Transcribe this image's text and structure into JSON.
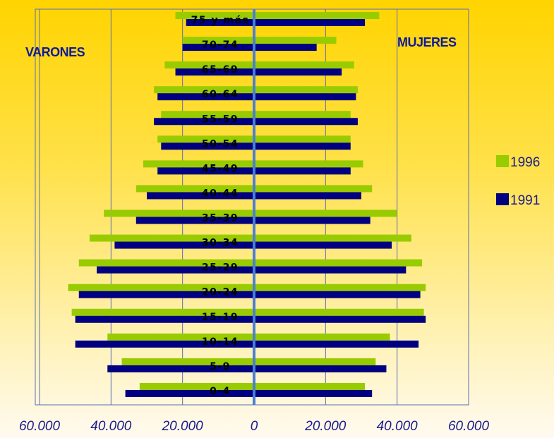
{
  "chart_data": {
    "type": "bar",
    "orientation": "horizontal",
    "layout": "population-pyramid",
    "categories": [
      "0-4",
      "5-9",
      "10-14",
      "15-19",
      "20-24",
      "25-29",
      "30-34",
      "35-39",
      "40-44",
      "45-49",
      "50-54",
      "55-59",
      "60-64",
      "65-69",
      "70-74",
      "75 y más"
    ],
    "left_label": "VARONES",
    "right_label": "MUJERES",
    "xlim": [
      -60000,
      60000
    ],
    "x_ticks": [
      -60000,
      -40000,
      -20000,
      0,
      20000,
      40000,
      60000
    ],
    "x_tick_labels": [
      "60.000",
      "40.000",
      "20.000",
      "0",
      "20.000",
      "40.000",
      "60.000"
    ],
    "grid": true,
    "legend_position": "right",
    "series": [
      {
        "name": "1996",
        "color": "#99cc00",
        "varones": [
          32000,
          37000,
          41000,
          51000,
          52000,
          49000,
          46000,
          42000,
          33000,
          31000,
          27000,
          26000,
          28000,
          25000,
          20000,
          22000
        ],
        "mujeres": [
          31000,
          34000,
          38000,
          47500,
          48000,
          47000,
          44000,
          40000,
          33000,
          30500,
          27000,
          27000,
          29000,
          28000,
          23000,
          35000
        ]
      },
      {
        "name": "1991",
        "color": "#000080",
        "varones": [
          36000,
          41000,
          50000,
          50000,
          49000,
          44000,
          39000,
          33000,
          30000,
          27000,
          26000,
          28000,
          27000,
          22000,
          20000,
          19000
        ],
        "mujeres": [
          33000,
          37000,
          46000,
          48000,
          46500,
          42500,
          38500,
          32500,
          30000,
          27000,
          27000,
          29000,
          28500,
          24500,
          17500,
          31000
        ]
      }
    ]
  }
}
